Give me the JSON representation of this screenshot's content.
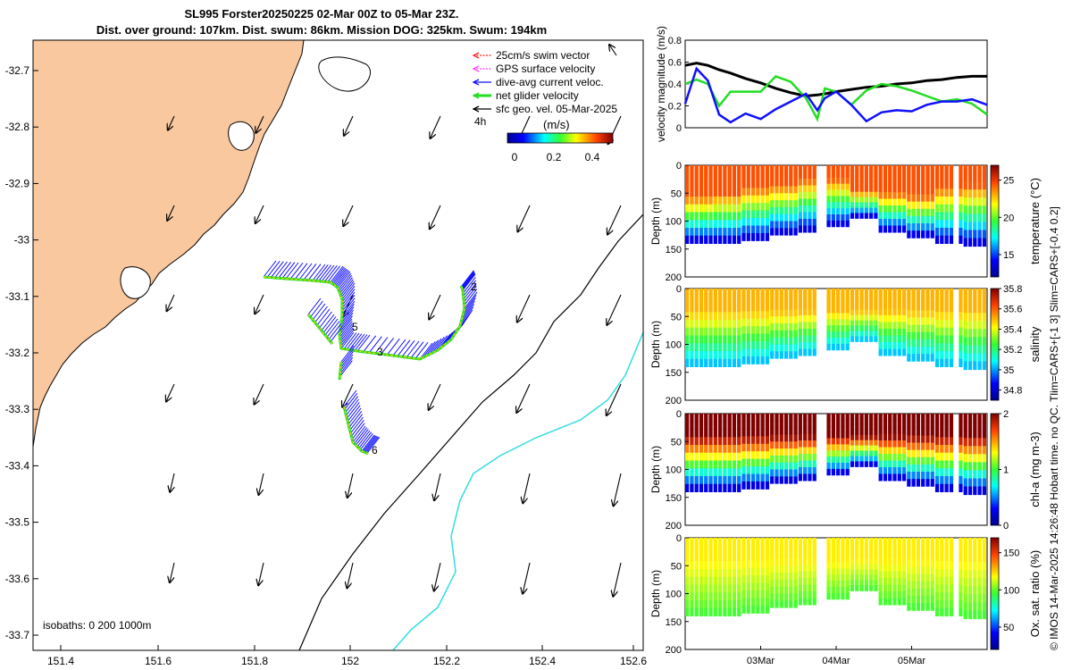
{
  "header": {
    "title_line1": "SL995 Forster20250225 02-Mar 00Z to 05-Mar 23Z.",
    "title_line2": "Dist. over ground: 107km. Dist. swum: 86km. Mission DOG: 325km. Swum: 194km"
  },
  "colors": {
    "land": "#f9c89f",
    "swim_vector": "#ff2020",
    "gps_velocity": "#ff40ff",
    "current": "#1010ff",
    "net_velocity": "#22dd22",
    "geostrophic": "#000000",
    "isobath_200": "#000000",
    "isobath_1000": "#33dde0"
  },
  "map": {
    "x_ticks": [
      "151.4",
      "151.6",
      "151.8",
      "152",
      "152.2",
      "152.4",
      "152.6"
    ],
    "y_ticks": [
      "-32.7",
      "-32.8",
      "-32.9",
      "-33",
      "-33.1",
      "-33.2",
      "-33.3",
      "-33.4",
      "-33.5",
      "-33.6",
      "-33.7"
    ],
    "isobath_label": "isobaths: 0   200  1000m",
    "time_label": "4h",
    "track_day_labels": [
      "2",
      "3",
      "5",
      "6"
    ],
    "colorbar_title": "(m/s)",
    "colorbar_ticks": [
      "0",
      "0.2",
      "0.4"
    ]
  },
  "legend": {
    "items": [
      {
        "label": "25cm/s swim vector",
        "color": "#ff2020"
      },
      {
        "label": "GPS surface velocity",
        "color": "#ff40ff"
      },
      {
        "label": "dive-avg current veloc.",
        "color": "#1010ff"
      },
      {
        "label": "net glider velocity",
        "color": "#22dd22"
      },
      {
        "label": "sfc geo. vel. 05-Mar-2025",
        "color": "#000000"
      }
    ]
  },
  "side_note": "© IMOS 14-Mar-2025 14:26:48 Hobart time. no QC. Tlim=CARS+[-1 3] Slim=CARS+[-0.4 0.2]",
  "chart_data": [
    {
      "type": "line",
      "ylabel": "velocity magnitude (m/s)",
      "ylim": [
        0,
        0.8
      ],
      "yticks": [
        "0",
        "0.2",
        "0.4",
        "0.6",
        "0.8"
      ],
      "x_days": [
        0,
        0.15,
        0.3,
        0.45,
        0.6,
        0.8,
        1.0,
        1.2,
        1.4,
        1.6,
        1.75,
        1.85,
        2.0,
        2.2,
        2.4,
        2.6,
        2.8,
        3.0,
        3.2,
        3.4,
        3.6,
        3.8,
        4.0
      ],
      "series": [
        {
          "name": "geostrophic",
          "color": "#000000",
          "values": [
            0.57,
            0.59,
            0.57,
            0.53,
            0.5,
            0.45,
            0.41,
            0.36,
            0.32,
            0.29,
            0.3,
            0.31,
            0.33,
            0.35,
            0.37,
            0.38,
            0.4,
            0.41,
            0.43,
            0.44,
            0.46,
            0.47,
            0.47
          ]
        },
        {
          "name": "net glider",
          "color": "#22dd22",
          "values": [
            0.4,
            0.44,
            0.4,
            0.2,
            0.33,
            0.33,
            0.33,
            0.47,
            0.42,
            0.27,
            0.08,
            0.36,
            0.33,
            0.21,
            0.34,
            0.4,
            0.38,
            0.34,
            0.29,
            0.24,
            0.26,
            0.22,
            0.12
          ]
        },
        {
          "name": "dive-avg current",
          "color": "#1010ff",
          "values": [
            0.22,
            0.54,
            0.43,
            0.12,
            0.05,
            0.13,
            0.08,
            0.17,
            0.24,
            0.31,
            0.16,
            0.27,
            0.33,
            0.21,
            0.06,
            0.14,
            0.16,
            0.15,
            0.21,
            0.24,
            0.24,
            0.26,
            0.21
          ]
        }
      ]
    },
    {
      "type": "heatmap",
      "quantity": "temperature",
      "ylabel": "Depth (m)",
      "colorbar_label": "temperature (°C)",
      "ylim": [
        200,
        0
      ],
      "yticks": [
        "0",
        "50",
        "100",
        "150",
        "200"
      ],
      "colorbar_range": [
        12,
        27
      ],
      "colorbar_ticks": [
        "15",
        "20",
        "25"
      ],
      "surface_value": 24.5,
      "deep_value": 13,
      "mixed_layer_depth_m": [
        55,
        50,
        40,
        35,
        25,
        25,
        45,
        50,
        55,
        40,
        35
      ],
      "max_depth_m": [
        140,
        140,
        135,
        125,
        120,
        110,
        95,
        120,
        130,
        140,
        145
      ]
    },
    {
      "type": "heatmap",
      "quantity": "salinity",
      "ylabel": "Depth (m)",
      "colorbar_label": "salinity",
      "ylim": [
        200,
        0
      ],
      "yticks": [
        "0",
        "50",
        "100",
        "150",
        "200"
      ],
      "colorbar_range": [
        34.7,
        35.8
      ],
      "colorbar_ticks": [
        "34.8",
        "35",
        "35.2",
        "35.4",
        "35.6",
        "35.8"
      ],
      "surface_value": 35.5,
      "deep_value": 35.0,
      "max_depth_m": [
        140,
        140,
        135,
        125,
        120,
        110,
        95,
        120,
        130,
        140,
        145
      ]
    },
    {
      "type": "heatmap",
      "quantity": "chl-a",
      "ylabel": "Depth (m)",
      "colorbar_label": "chl-a (mg m-3)",
      "ylim": [
        200,
        0
      ],
      "yticks": [
        "0",
        "50",
        "100",
        "150",
        "200"
      ],
      "colorbar_range": [
        0,
        2
      ],
      "colorbar_ticks": [
        "0",
        "1",
        "2"
      ],
      "surface_value": 2.0,
      "deep_value": 0.1,
      "max_depth_m": [
        140,
        140,
        135,
        125,
        120,
        110,
        95,
        120,
        130,
        140,
        145
      ]
    },
    {
      "type": "heatmap",
      "quantity": "oxygen saturation",
      "ylabel": "Depth (m)",
      "colorbar_label": "Ox. sat. ratio (%)",
      "ylim": [
        200,
        0
      ],
      "yticks": [
        "0",
        "50",
        "100",
        "150",
        "200"
      ],
      "colorbar_range": [
        20,
        170
      ],
      "colorbar_ticks": [
        "50",
        "100",
        "150"
      ],
      "surface_value": 120,
      "deep_value": 95,
      "max_depth_m": [
        140,
        140,
        135,
        125,
        120,
        110,
        95,
        120,
        130,
        140,
        145
      ]
    }
  ],
  "time_axis": {
    "ticks": [
      "03Mar",
      "04Mar",
      "05Mar"
    ],
    "tick_days": [
      1,
      2,
      3
    ],
    "data_gaps_days": [
      [
        1.75,
        1.82
      ],
      [
        3.52,
        3.58
      ]
    ]
  }
}
